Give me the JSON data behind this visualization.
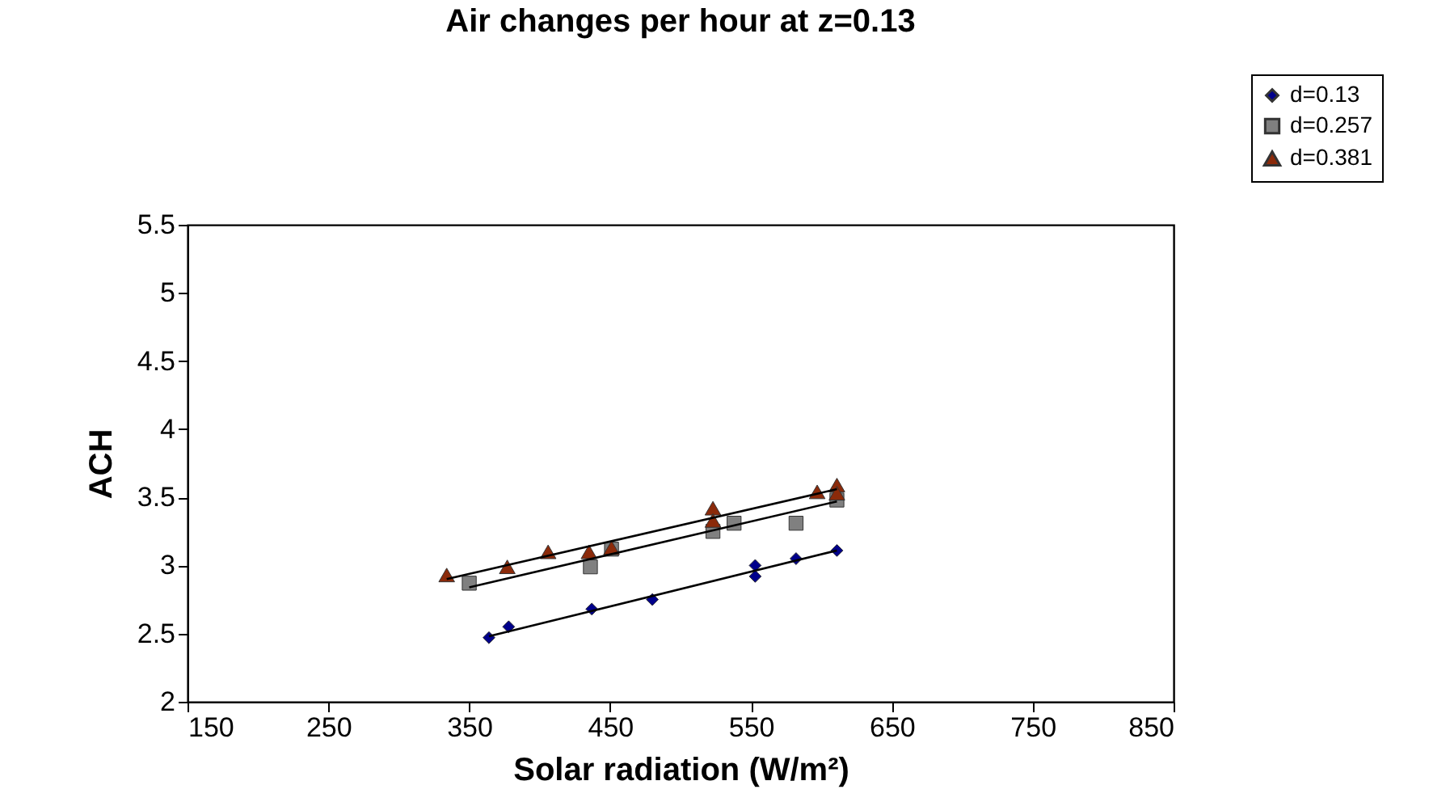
{
  "chart_data": {
    "type": "scatter",
    "title": "Air changes per hour at z=0.13",
    "xlabel": "Solar radiation (W/m²)",
    "ylabel": "ACH",
    "xlim": [
      150,
      850
    ],
    "xticks": [
      150,
      250,
      350,
      450,
      550,
      650,
      750,
      850
    ],
    "ylim": [
      2,
      5.5
    ],
    "yticks": [
      2,
      2.5,
      3,
      3.5,
      4,
      4.5,
      5,
      5.5
    ],
    "grid": false,
    "legend": "top right",
    "series": [
      {
        "name": "d=0.13",
        "color": "#00008b",
        "marker": "diamond",
        "x": [
          364,
          378,
          437,
          480,
          553,
          553,
          582,
          611
        ],
        "values": [
          2.47,
          2.55,
          2.68,
          2.75,
          3.0,
          2.92,
          3.05,
          3.11
        ]
      },
      {
        "name": "d=0.257",
        "color": "#808080",
        "marker": "square",
        "x": [
          350,
          436,
          451,
          523,
          538,
          582,
          611
        ],
        "values": [
          2.87,
          2.99,
          3.12,
          3.25,
          3.31,
          3.31,
          3.48
        ]
      },
      {
        "name": "d=0.381",
        "color": "#8b2a0a",
        "marker": "triangle",
        "x": [
          334,
          377,
          406,
          435,
          451,
          523,
          523,
          597,
          611,
          611
        ],
        "values": [
          2.93,
          2.99,
          3.1,
          3.1,
          3.13,
          3.42,
          3.33,
          3.54,
          3.59,
          3.53
        ]
      },
      {
        "type": "line",
        "color": "#000000",
        "marker": "none",
        "line_style": "solid",
        "x": [
          364,
          611
        ],
        "values": [
          2.48,
          3.11
        ]
      },
      {
        "type": "line",
        "color": "#000000",
        "marker": "none",
        "line_style": "solid",
        "x": [
          350,
          611
        ],
        "values": [
          2.84,
          3.47
        ]
      },
      {
        "type": "line",
        "color": "#000000",
        "marker": "none",
        "line_style": "solid",
        "x": [
          334,
          611
        ],
        "values": [
          2.9,
          3.56
        ]
      }
    ]
  }
}
